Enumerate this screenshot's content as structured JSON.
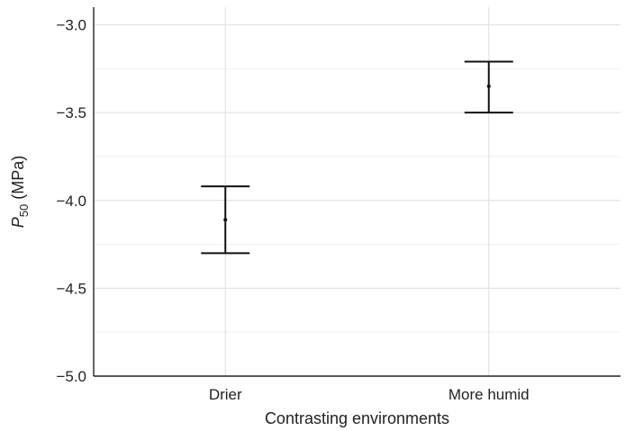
{
  "chart_data": {
    "type": "errorbar",
    "title": "",
    "xlabel": "Contrasting environments",
    "ylabel": {
      "main": "P",
      "sub": "50",
      "unit": " (MPa)"
    },
    "categories": [
      "Drier",
      "More humid"
    ],
    "series": [
      {
        "values": [
          -4.11,
          -3.35
        ],
        "lower": [
          -4.3,
          -3.5
        ],
        "upper": [
          -3.92,
          -3.21
        ]
      }
    ],
    "ylim": [
      -5.0,
      -2.9
    ],
    "yticks": [
      -3.0,
      -3.5,
      -4.0,
      -4.5,
      -5.0
    ],
    "ytick_labels": [
      "−3.0",
      "−3.5",
      "−4.0",
      "−4.5",
      "−5.0"
    ],
    "grid": true,
    "legend": "none"
  }
}
